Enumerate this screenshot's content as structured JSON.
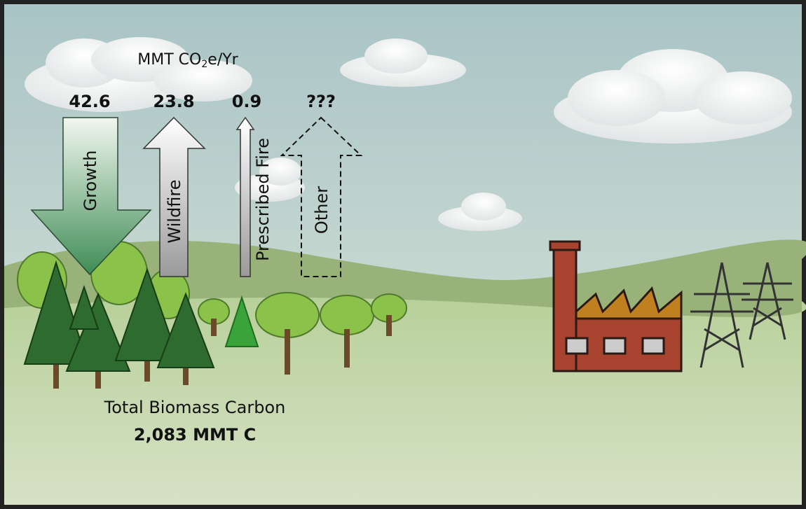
{
  "title": {
    "before": "MMT CO",
    "sub": "2",
    "after": "e/Yr"
  },
  "flows": [
    {
      "label": "Growth",
      "value": 42.6
    },
    {
      "label": "Wildfire",
      "value": 23.8
    },
    {
      "label": "Prescribed Fire",
      "value": 0.9
    },
    {
      "label": "Other",
      "value": "???"
    }
  ],
  "stock": {
    "label": "Total Biomass Carbon",
    "value": "2,083 MMT C"
  }
}
